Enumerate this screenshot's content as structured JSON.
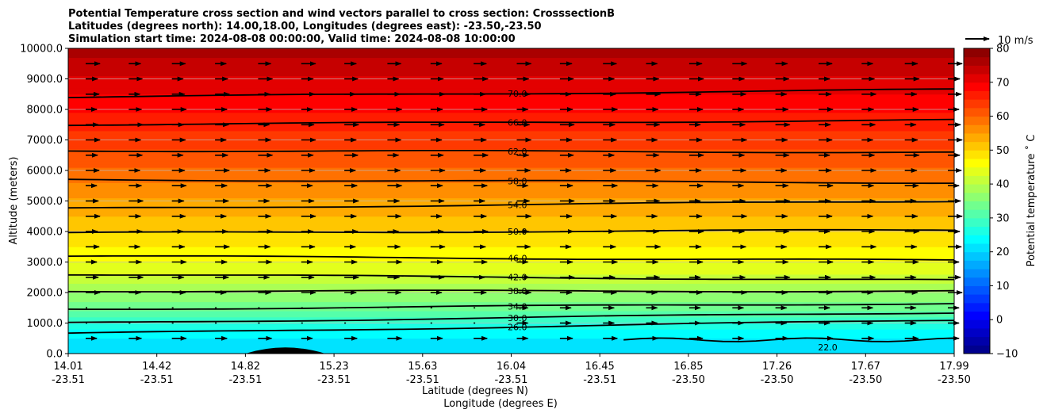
{
  "chart_data": {
    "type": "contour",
    "title_lines": [
      "Potential Temperature cross section and wind vectors parallel to cross section: CrosssectionB",
      "Latitudes (degrees north): 14.00,18.00, Longitudes (degrees east): -23.50,-23.50",
      "Simulation start time: 2024-08-08 00:00:00, Valid time: 2024-08-08 10:00:00"
    ],
    "xlabel_lat": "Latitude (degrees N)",
    "xlabel_lon": "Longitude (degrees E)",
    "ylabel": "Altitude (meters)",
    "ylim": [
      0,
      10000
    ],
    "xlim": [
      14.01,
      17.99
    ],
    "y_ticks": [
      0,
      1000,
      2000,
      3000,
      4000,
      5000,
      6000,
      7000,
      8000,
      9000,
      10000
    ],
    "y_tick_labels": [
      "0.0",
      "1000.0",
      "2000.0",
      "3000.0",
      "4000.0",
      "5000.0",
      "6000.0",
      "7000.0",
      "8000.0",
      "9000.0",
      "10000.0"
    ],
    "x_ticks": [
      {
        "lat": "14.01",
        "lon": "-23.51"
      },
      {
        "lat": "14.42",
        "lon": "-23.51"
      },
      {
        "lat": "14.82",
        "lon": "-23.51"
      },
      {
        "lat": "15.23",
        "lon": "-23.51"
      },
      {
        "lat": "15.63",
        "lon": "-23.51"
      },
      {
        "lat": "16.04",
        "lon": "-23.51"
      },
      {
        "lat": "16.45",
        "lon": "-23.51"
      },
      {
        "lat": "16.85",
        "lon": "-23.50"
      },
      {
        "lat": "17.26",
        "lon": "-23.50"
      },
      {
        "lat": "17.67",
        "lon": "-23.50"
      },
      {
        "lat": "17.99",
        "lon": "-23.50"
      }
    ],
    "colorbar": {
      "label": "Potential temperature ˚ C",
      "range": [
        -10,
        80
      ],
      "ticks": [
        -10,
        0,
        10,
        20,
        30,
        40,
        50,
        60,
        70,
        80
      ],
      "tick_labels": [
        "−10",
        "0",
        "10",
        "20",
        "30",
        "40",
        "50",
        "60",
        "70",
        "80"
      ],
      "colormap": "jet"
    },
    "vector_key": {
      "label": "10 m/s"
    },
    "contours": [
      {
        "level": "22.0",
        "alt_left": 450,
        "alt_right": 450
      },
      {
        "level": "26.0",
        "alt_left": 650,
        "alt_right": 1100
      },
      {
        "level": "30.0",
        "alt_left": 1000,
        "alt_right": 1350
      },
      {
        "level": "34.0",
        "alt_left": 1450,
        "alt_right": 1650
      },
      {
        "level": "38.0",
        "alt_left": 2050,
        "alt_right": 2050
      },
      {
        "level": "42.0",
        "alt_left": 2600,
        "alt_right": 2400
      },
      {
        "level": "46.0",
        "alt_left": 3200,
        "alt_right": 3050
      },
      {
        "level": "50.0",
        "alt_left": 3950,
        "alt_right": 4050
      },
      {
        "level": "54.0",
        "alt_left": 4750,
        "alt_right": 5000
      },
      {
        "level": "58.0",
        "alt_left": 5700,
        "alt_right": 5600
      },
      {
        "level": "62.0",
        "alt_left": 6650,
        "alt_right": 6600
      },
      {
        "level": "66.0",
        "alt_left": 7500,
        "alt_right": 7650
      },
      {
        "level": "70.0",
        "alt_left": 8400,
        "alt_right": 8650
      }
    ],
    "wind_vector_rows_m": [
      500,
      1000,
      1500,
      2000,
      2500,
      3000,
      3500,
      4000,
      4500,
      5000,
      5500,
      6000,
      6500,
      7000,
      7500,
      8000,
      8500,
      9000,
      9500
    ]
  }
}
